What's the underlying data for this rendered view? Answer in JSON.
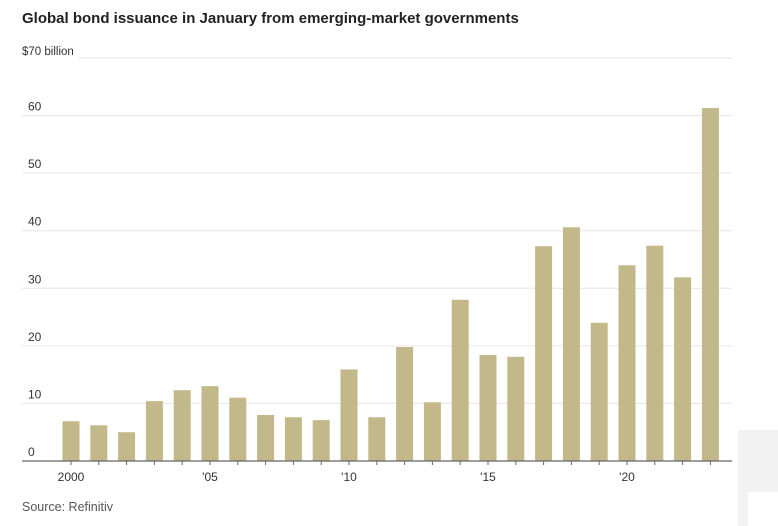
{
  "title": "Global bond issuance in January from emerging-market governments",
  "source": "Source: Refinitiv",
  "colors": {
    "bar": "#c2b88a",
    "grid": "#e6e6e6",
    "axis": "#666666"
  },
  "chart_data": {
    "type": "bar",
    "title": "Global bond issuance in January from emerging-market governments",
    "ylabel": "$70 billion",
    "ylim": [
      0,
      70
    ],
    "yticks": [
      0,
      10,
      20,
      30,
      40,
      50,
      60
    ],
    "ytick_labels": [
      "0",
      "10",
      "20",
      "30",
      "40",
      "50",
      "60"
    ],
    "x": [
      2000,
      2001,
      2002,
      2003,
      2004,
      2005,
      2006,
      2007,
      2008,
      2009,
      2010,
      2011,
      2012,
      2013,
      2014,
      2015,
      2016,
      2017,
      2018,
      2019,
      2020,
      2021,
      2022,
      2023
    ],
    "values": [
      6.9,
      6.2,
      5.0,
      10.4,
      12.3,
      13.0,
      11.0,
      8.0,
      7.6,
      7.1,
      15.9,
      7.6,
      19.8,
      10.2,
      28.0,
      18.4,
      18.1,
      37.3,
      40.6,
      24.0,
      34.0,
      37.4,
      31.9,
      61.3
    ],
    "xtick_values": [
      2000,
      2005,
      2010,
      2015,
      2020
    ],
    "xtick_labels": [
      "2000",
      "'05",
      "'10",
      "'15",
      "'20"
    ],
    "grid": true,
    "legend": "none"
  }
}
